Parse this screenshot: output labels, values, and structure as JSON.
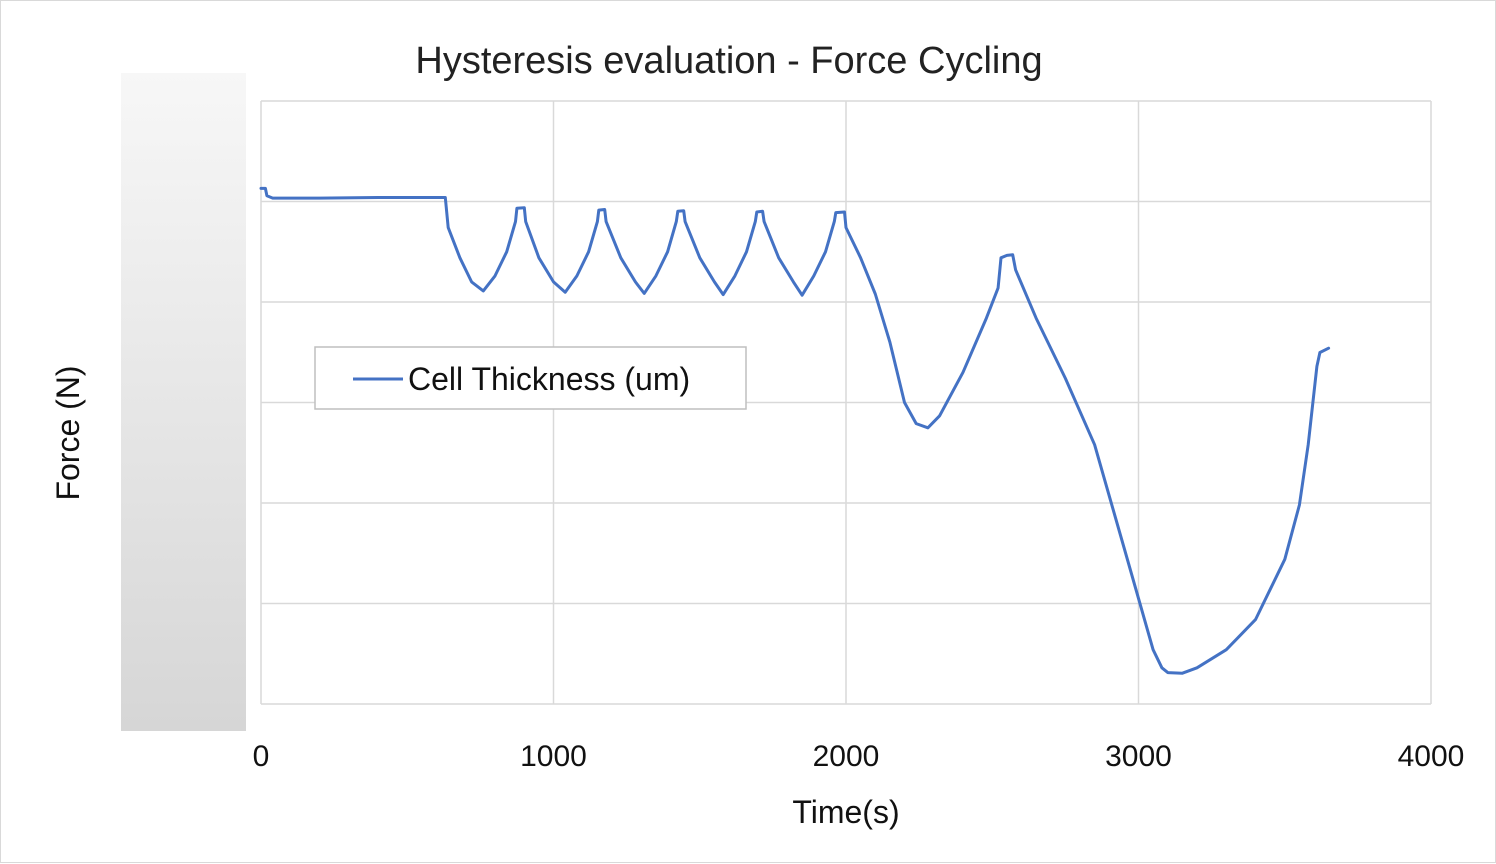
{
  "chart_data": {
    "type": "line",
    "title": "Hysteresis evaluation - Force Cycling",
    "xlabel": "Time(s)",
    "ylabel": "Force (N)",
    "xlim": [
      0,
      4000
    ],
    "x_ticks": [
      "0",
      "1000",
      "2000",
      "3000",
      "4000"
    ],
    "y_tick_labels_visible": false,
    "y_gridlines": 6,
    "grid": true,
    "legend_position": "upper-left inside plot",
    "series": [
      {
        "name": "Cell Thickness (um)",
        "color": "#4472c4",
        "y_units": "fraction of plot height above x-axis",
        "points": [
          [
            0,
            0.855
          ],
          [
            15,
            0.855
          ],
          [
            20,
            0.843
          ],
          [
            40,
            0.839
          ],
          [
            200,
            0.839
          ],
          [
            400,
            0.84
          ],
          [
            630,
            0.84
          ],
          [
            640,
            0.79
          ],
          [
            680,
            0.74
          ],
          [
            720,
            0.7
          ],
          [
            760,
            0.685
          ],
          [
            800,
            0.71
          ],
          [
            840,
            0.75
          ],
          [
            870,
            0.8
          ],
          [
            875,
            0.822
          ],
          [
            900,
            0.823
          ],
          [
            905,
            0.8
          ],
          [
            950,
            0.74
          ],
          [
            1000,
            0.7
          ],
          [
            1040,
            0.683
          ],
          [
            1080,
            0.71
          ],
          [
            1120,
            0.75
          ],
          [
            1150,
            0.8
          ],
          [
            1155,
            0.819
          ],
          [
            1175,
            0.82
          ],
          [
            1180,
            0.8
          ],
          [
            1230,
            0.74
          ],
          [
            1280,
            0.7
          ],
          [
            1310,
            0.681
          ],
          [
            1350,
            0.71
          ],
          [
            1390,
            0.75
          ],
          [
            1420,
            0.8
          ],
          [
            1425,
            0.817
          ],
          [
            1445,
            0.818
          ],
          [
            1450,
            0.8
          ],
          [
            1500,
            0.74
          ],
          [
            1550,
            0.7
          ],
          [
            1580,
            0.679
          ],
          [
            1620,
            0.71
          ],
          [
            1660,
            0.75
          ],
          [
            1690,
            0.8
          ],
          [
            1695,
            0.816
          ],
          [
            1715,
            0.817
          ],
          [
            1720,
            0.8
          ],
          [
            1770,
            0.74
          ],
          [
            1820,
            0.7
          ],
          [
            1850,
            0.678
          ],
          [
            1890,
            0.71
          ],
          [
            1930,
            0.75
          ],
          [
            1960,
            0.8
          ],
          [
            1965,
            0.815
          ],
          [
            1995,
            0.816
          ],
          [
            2000,
            0.79
          ],
          [
            2050,
            0.74
          ],
          [
            2100,
            0.68
          ],
          [
            2150,
            0.6
          ],
          [
            2200,
            0.5
          ],
          [
            2240,
            0.465
          ],
          [
            2280,
            0.458
          ],
          [
            2320,
            0.478
          ],
          [
            2400,
            0.55
          ],
          [
            2480,
            0.64
          ],
          [
            2520,
            0.69
          ],
          [
            2530,
            0.74
          ],
          [
            2550,
            0.744
          ],
          [
            2570,
            0.745
          ],
          [
            2580,
            0.72
          ],
          [
            2650,
            0.64
          ],
          [
            2750,
            0.54
          ],
          [
            2850,
            0.43
          ],
          [
            2950,
            0.26
          ],
          [
            3050,
            0.09
          ],
          [
            3080,
            0.06
          ],
          [
            3100,
            0.052
          ],
          [
            3150,
            0.051
          ],
          [
            3200,
            0.06
          ],
          [
            3300,
            0.09
          ],
          [
            3400,
            0.14
          ],
          [
            3500,
            0.24
          ],
          [
            3550,
            0.33
          ],
          [
            3580,
            0.43
          ],
          [
            3610,
            0.56
          ],
          [
            3620,
            0.583
          ],
          [
            3650,
            0.59
          ]
        ]
      }
    ]
  }
}
